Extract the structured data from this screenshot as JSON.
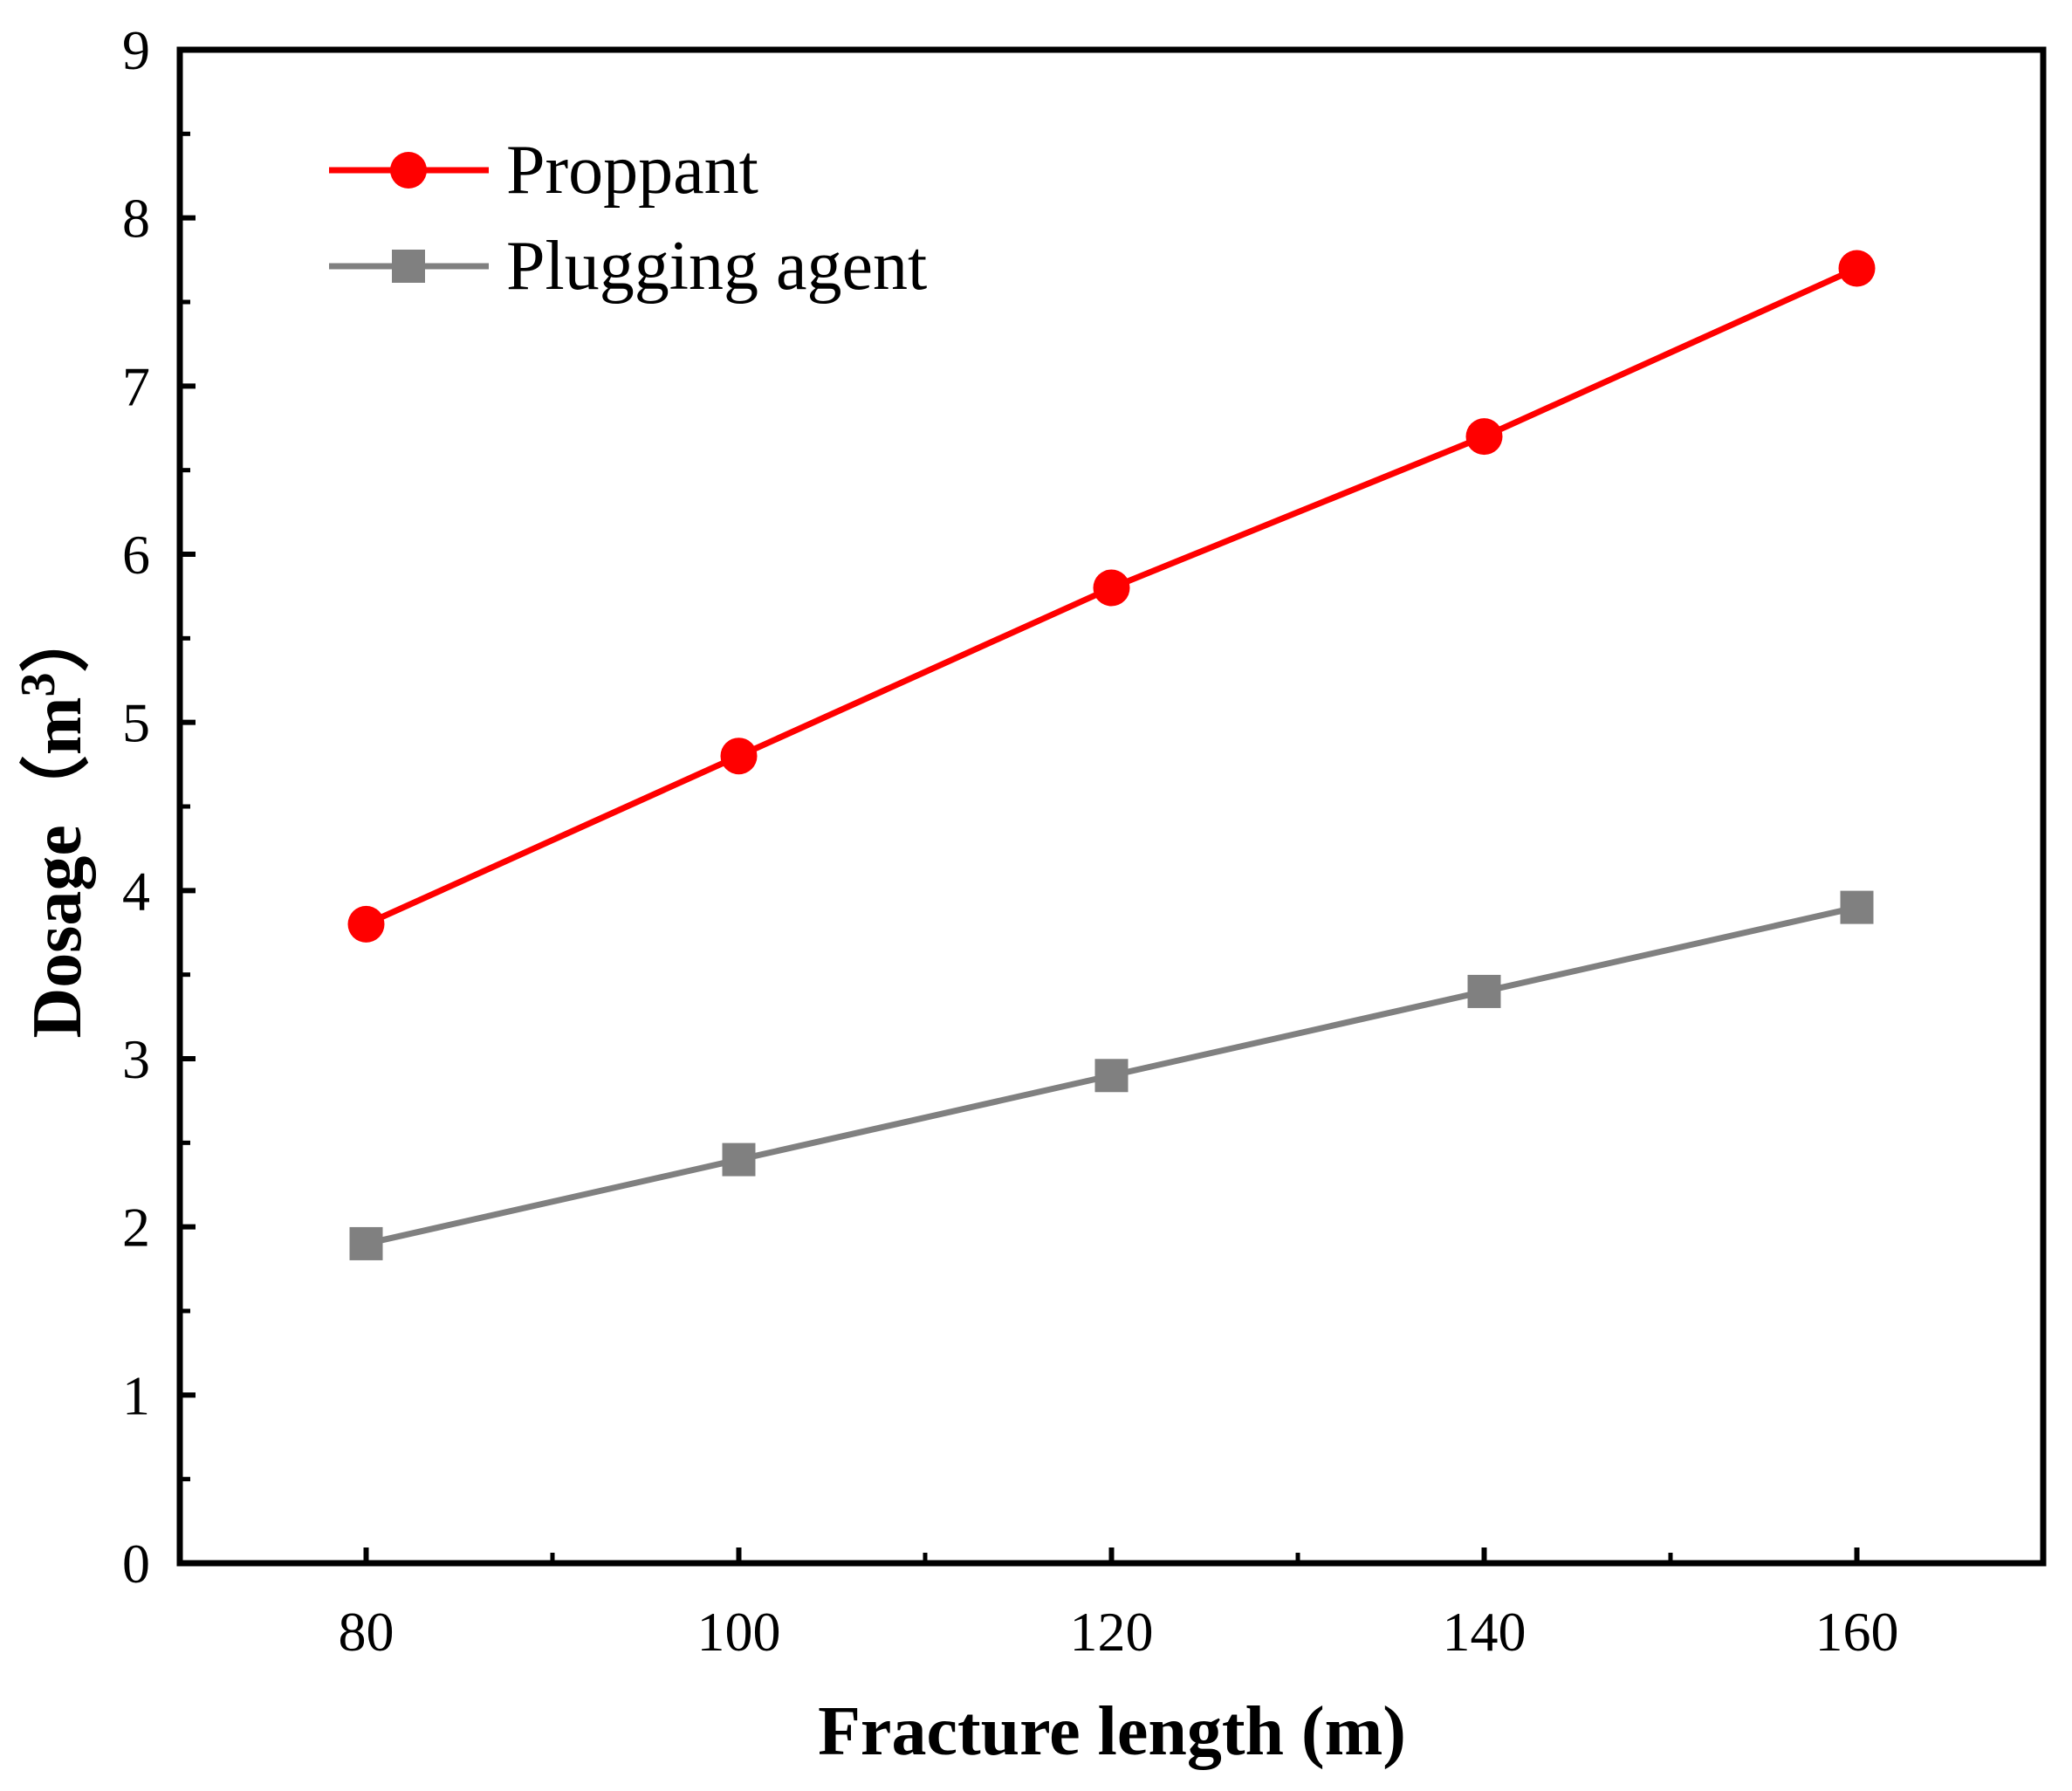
{
  "chart_data": {
    "type": "line",
    "title": "",
    "xlabel": "Fracture length (m)",
    "ylabel": "Dosage（m",
    "ylabel_superscript": "3",
    "ylabel_close": "）",
    "x": [
      80,
      100,
      120,
      140,
      160
    ],
    "x_ticks": [
      80,
      100,
      120,
      140,
      160
    ],
    "xlim": [
      70,
      170
    ],
    "y_ticks": [
      0,
      1,
      2,
      3,
      4,
      5,
      6,
      7,
      8,
      9
    ],
    "ylim": [
      0,
      9
    ],
    "grid": false,
    "legend_position": "top-left",
    "series": [
      {
        "name": "Proppant",
        "values": [
          3.8,
          4.8,
          5.8,
          6.7,
          7.7
        ],
        "color": "#ff0000",
        "marker": "circle"
      },
      {
        "name": "Plugging agent",
        "values": [
          1.9,
          2.4,
          2.9,
          3.4,
          3.9
        ],
        "color": "#808080",
        "marker": "square"
      }
    ]
  }
}
